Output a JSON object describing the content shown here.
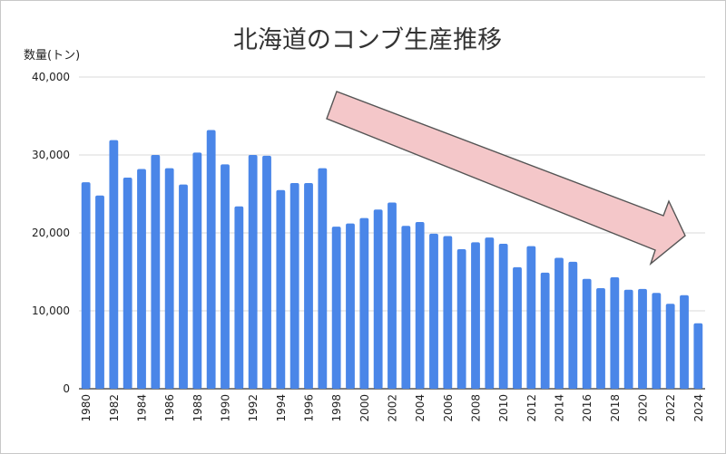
{
  "chart_data": {
    "type": "bar",
    "title": "北海道のコンブ生産推移",
    "ylabel": "数量(トン)",
    "xlabel": "",
    "ylim": [
      0,
      40000
    ],
    "yticks": [
      0,
      10000,
      20000,
      30000,
      40000
    ],
    "ytick_labels": [
      "0",
      "10,000",
      "20,000",
      "30,000",
      "40,000"
    ],
    "grid": true,
    "bar_color": "#4a86e8",
    "arrow_fill": "#f4c7c9",
    "arrow_stroke": "#555555",
    "categories": [
      "1980",
      "1981",
      "1982",
      "1983",
      "1984",
      "1985",
      "1986",
      "1987",
      "1988",
      "1989",
      "1990",
      "1991",
      "1992",
      "1993",
      "1994",
      "1995",
      "1996",
      "1997",
      "1998",
      "1999",
      "2000",
      "2001",
      "2002",
      "2003",
      "2004",
      "2005",
      "2006",
      "2007",
      "2008",
      "2009",
      "2010",
      "2011",
      "2012",
      "2013",
      "2014",
      "2015",
      "2016",
      "2017",
      "2018",
      "2019",
      "2020",
      "2021",
      "2022",
      "2023",
      "2024"
    ],
    "x_tick_labels": [
      "1980",
      "",
      "1982",
      "",
      "1984",
      "",
      "1986",
      "",
      "1988",
      "",
      "1990",
      "",
      "1992",
      "",
      "1994",
      "",
      "1996",
      "",
      "1998",
      "",
      "2000",
      "",
      "2002",
      "",
      "2004",
      "",
      "2006",
      "",
      "2008",
      "",
      "2010",
      "",
      "2012",
      "",
      "2014",
      "",
      "2016",
      "",
      "2018",
      "",
      "2020",
      "",
      "2022",
      "",
      "2024"
    ],
    "values": [
      26500,
      24800,
      31900,
      27100,
      28200,
      30000,
      28300,
      26200,
      30300,
      33200,
      28800,
      23400,
      30000,
      29900,
      25500,
      26400,
      26400,
      28300,
      20800,
      21200,
      21900,
      23000,
      23900,
      20900,
      21400,
      19900,
      19600,
      17900,
      18800,
      19400,
      18600,
      15600,
      18300,
      14900,
      16800,
      16300,
      14100,
      12900,
      14300,
      12700,
      12800,
      12300,
      10900,
      12000,
      8400
    ]
  }
}
